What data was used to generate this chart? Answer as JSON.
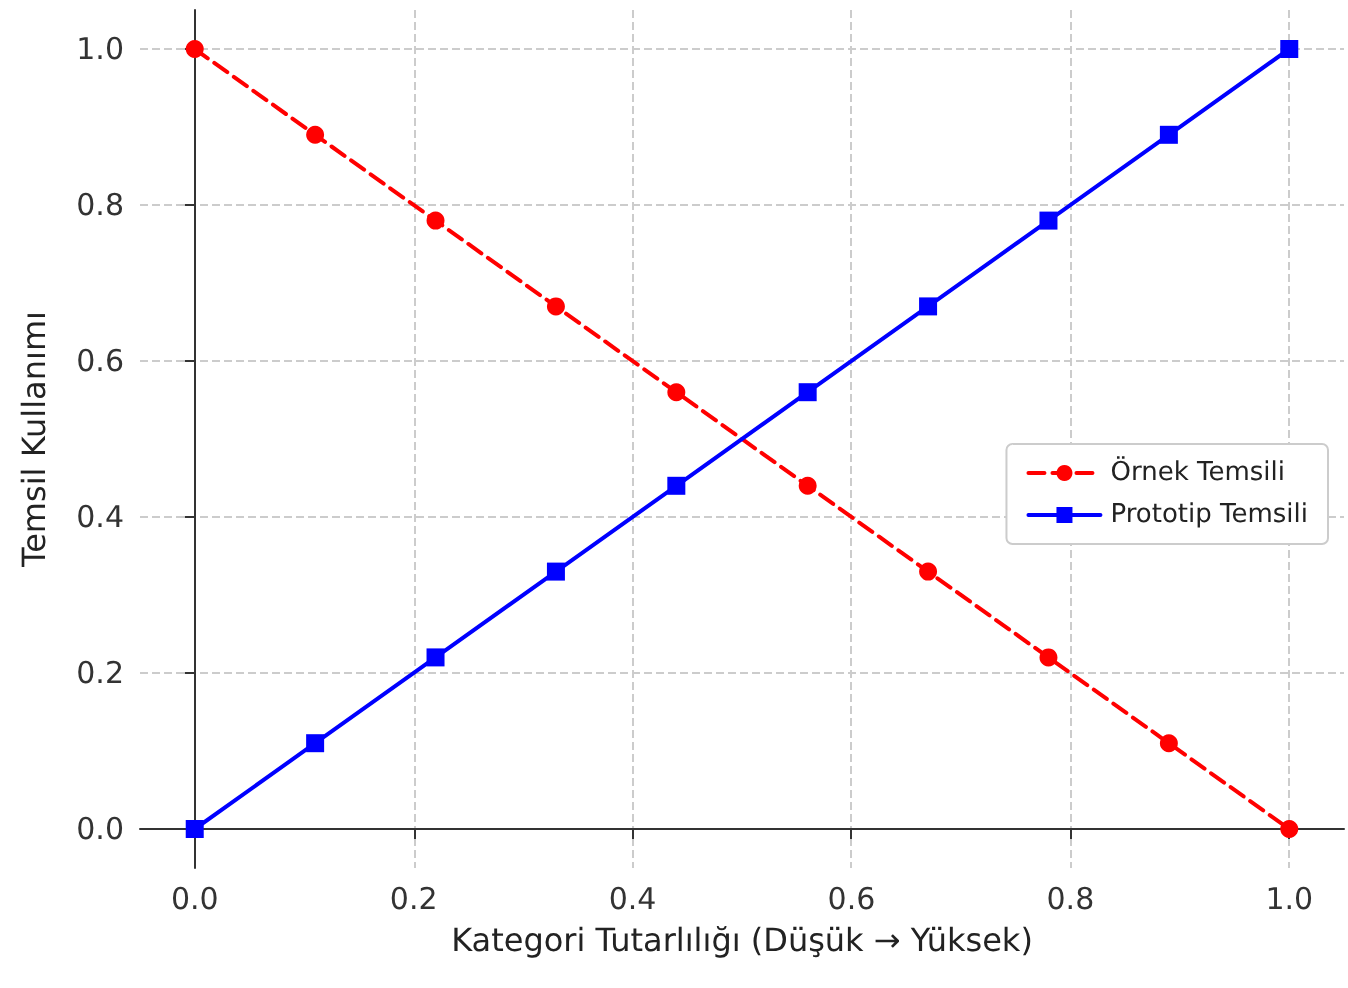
{
  "chart_data": {
    "type": "line",
    "xlabel": "Kategori Tutarlılığı (Düşük → Yüksek)",
    "ylabel": "Temsil Kullanımı",
    "x": [
      0,
      0.11,
      0.22,
      0.33,
      0.44,
      0.56,
      0.67,
      0.78,
      0.89,
      1
    ],
    "series": [
      {
        "name": "Örnek Temsili",
        "color": "#ff0000",
        "marker": "circle",
        "line_style": "dashed",
        "values": [
          1,
          0.89,
          0.78,
          0.67,
          0.56,
          0.44,
          0.33,
          0.22,
          0.11,
          0
        ]
      },
      {
        "name": "Prototip Temsili",
        "color": "#0000ff",
        "marker": "square",
        "line_style": "solid",
        "values": [
          0,
          0.11,
          0.22,
          0.33,
          0.44,
          0.56,
          0.67,
          0.78,
          0.89,
          1
        ]
      }
    ],
    "xlim": [
      -0.05,
      1.05
    ],
    "xticks": [
      {
        "value": 0,
        "label": "0.0"
      },
      {
        "value": 0.2,
        "label": "0.2"
      },
      {
        "value": 0.4,
        "label": "0.4"
      },
      {
        "value": 0.6,
        "label": "0.6"
      },
      {
        "value": 0.8,
        "label": "0.8"
      },
      {
        "value": 1,
        "label": "1.0"
      }
    ],
    "ylim": [
      -0.05,
      1.05
    ],
    "yticks": [
      {
        "value": 0,
        "label": "0.0"
      },
      {
        "value": 0.2,
        "label": "0.2"
      },
      {
        "value": 0.4,
        "label": "0.4"
      },
      {
        "value": 0.6,
        "label": "0.6"
      },
      {
        "value": 0.8,
        "label": "0.8"
      },
      {
        "value": 1,
        "label": "1.0"
      }
    ],
    "grid": true,
    "legend": "right"
  }
}
